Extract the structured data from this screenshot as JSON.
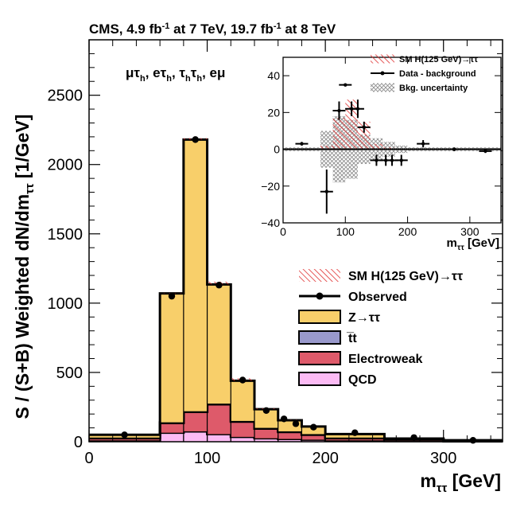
{
  "chart_data": [
    {
      "type": "bar",
      "subtype": "stacked-histogram",
      "title": "CMS, 4.9 fb⁻¹ at 7 TeV, 19.7 fb⁻¹ at 8 TeV",
      "title_parts": [
        "CMS, 4.9 fb",
        "-1",
        " at 7 TeV, 19.7 fb",
        "-1",
        " at 8 TeV"
      ],
      "channels_label": "μτh, eτh, τhτh, eμ",
      "channels": [
        {
          "a": "μτ",
          "s": "h"
        },
        {
          "a": ", eτ",
          "s": "h"
        },
        {
          "a": ", τ",
          "s": "h"
        },
        {
          "a": "τ",
          "s": "h"
        },
        {
          "a": ", eμ",
          "s": ""
        }
      ],
      "xlabel": "mττ [GeV]",
      "xlabel_main": "m",
      "xlabel_sub": "ττ",
      "xlabel_unit": " [GeV]",
      "ylabel": "S / (S+B) Weighted dN/dmττ [1/GeV]",
      "ylabel_main": "S / (S+B) Weighted dN/dm",
      "ylabel_sub": "ττ",
      "ylabel_unit": " [1/GeV]",
      "xlim": [
        0,
        350
      ],
      "ylim": [
        0,
        2900
      ],
      "xticks": [
        0,
        100,
        200,
        300
      ],
      "yticks": [
        0,
        500,
        1000,
        1500,
        2000,
        2500
      ],
      "xtick_labels": [
        "0",
        "100",
        "200",
        "300"
      ],
      "ytick_labels": [
        "0",
        "500",
        "1000",
        "1500",
        "2000",
        "2500"
      ],
      "bin_edges": [
        0,
        60,
        80,
        100,
        120,
        140,
        160,
        180,
        200,
        250,
        300,
        350
      ],
      "series": [
        {
          "name": "QCD",
          "color": "#fcbbf4",
          "values": [
            10,
            65,
            75,
            55,
            35,
            25,
            20,
            15,
            10,
            5,
            3
          ]
        },
        {
          "name": "Electroweak",
          "color": "#de5a6a",
          "values": [
            15,
            70,
            140,
            215,
            110,
            70,
            50,
            35,
            15,
            10,
            5
          ]
        },
        {
          "name": "t̅t",
          "color": "#9999cc",
          "values": [
            5,
            5,
            5,
            5,
            5,
            5,
            5,
            5,
            5,
            3,
            2
          ]
        },
        {
          "name": "Z→ττ",
          "color": "#f8cf6a",
          "values": [
            20,
            930,
            1960,
            860,
            290,
            135,
            80,
            55,
            25,
            5,
            0
          ]
        }
      ],
      "signal": {
        "name": "SM H(125 GeV)→ττ",
        "color": "#e03030",
        "values": [
          0,
          3,
          10,
          20,
          18,
          5,
          2,
          1,
          0,
          0,
          0
        ]
      },
      "observed": {
        "name": "Observed",
        "x": [
          30,
          70,
          90,
          110,
          130,
          150,
          165,
          175,
          190,
          225,
          275,
          325
        ],
        "y": [
          50,
          1050,
          2180,
          1130,
          445,
          225,
          165,
          130,
          105,
          65,
          30,
          10
        ]
      },
      "legend": [
        {
          "label": "SM H(125 GeV)→ττ",
          "kind": "hatch",
          "color": "#e03030"
        },
        {
          "label": "Observed",
          "kind": "marker",
          "color": "#000000"
        },
        {
          "label": "Z→ττ",
          "kind": "fill",
          "color": "#f8cf6a"
        },
        {
          "label": "t̅t",
          "kind": "fill",
          "color": "#9999cc"
        },
        {
          "label": "Electroweak",
          "kind": "fill",
          "color": "#de5a6a"
        },
        {
          "label": "QCD",
          "kind": "fill",
          "color": "#fcbbf4"
        }
      ],
      "legend_position": "middle-right"
    },
    {
      "type": "bar",
      "subtype": "residual-inset",
      "xlabel": "mττ [GeV]",
      "xlabel_main": "m",
      "xlabel_sub": "ττ",
      "xlabel_unit": " [GeV]",
      "xlim": [
        0,
        350
      ],
      "ylim": [
        -40,
        50
      ],
      "xticks": [
        0,
        100,
        200,
        300
      ],
      "yticks": [
        -40,
        -20,
        0,
        20,
        40
      ],
      "xtick_labels": [
        "0",
        "100",
        "200",
        "300"
      ],
      "ytick_labels": [
        "−40",
        "−20",
        "0",
        "20",
        "40"
      ],
      "bin_edges": [
        0,
        60,
        80,
        100,
        120,
        140,
        160,
        180,
        200,
        250,
        300,
        350
      ],
      "signal": {
        "name": "SM H(125 GeV)→ττ",
        "values": [
          0,
          2,
          17,
          27,
          15,
          3,
          1,
          0,
          0,
          0,
          0
        ]
      },
      "uncertainty": {
        "name": "Bkg. uncertainty",
        "values": [
          1,
          10,
          18,
          16,
          8,
          6,
          4,
          2,
          1,
          1,
          1
        ]
      },
      "data_minus_background": {
        "name": "Data - background",
        "x": [
          30,
          70,
          90,
          100,
          110,
          120,
          130,
          150,
          165,
          175,
          190,
          225,
          275,
          325
        ],
        "y": [
          3,
          -23,
          21,
          35,
          22,
          22,
          12,
          -6,
          -6,
          -6,
          -6,
          3,
          0,
          -1
        ],
        "err": [
          1,
          12,
          5,
          0,
          4,
          5,
          3,
          3,
          3,
          3,
          3,
          2,
          1,
          1
        ]
      },
      "legend": [
        {
          "label": "SM H(125 GeV)→ττ",
          "kind": "hatch"
        },
        {
          "label": "Data - background",
          "kind": "marker"
        },
        {
          "label": "Bkg. uncertainty",
          "kind": "crosshatch"
        }
      ],
      "legend_position": "top-right"
    }
  ]
}
